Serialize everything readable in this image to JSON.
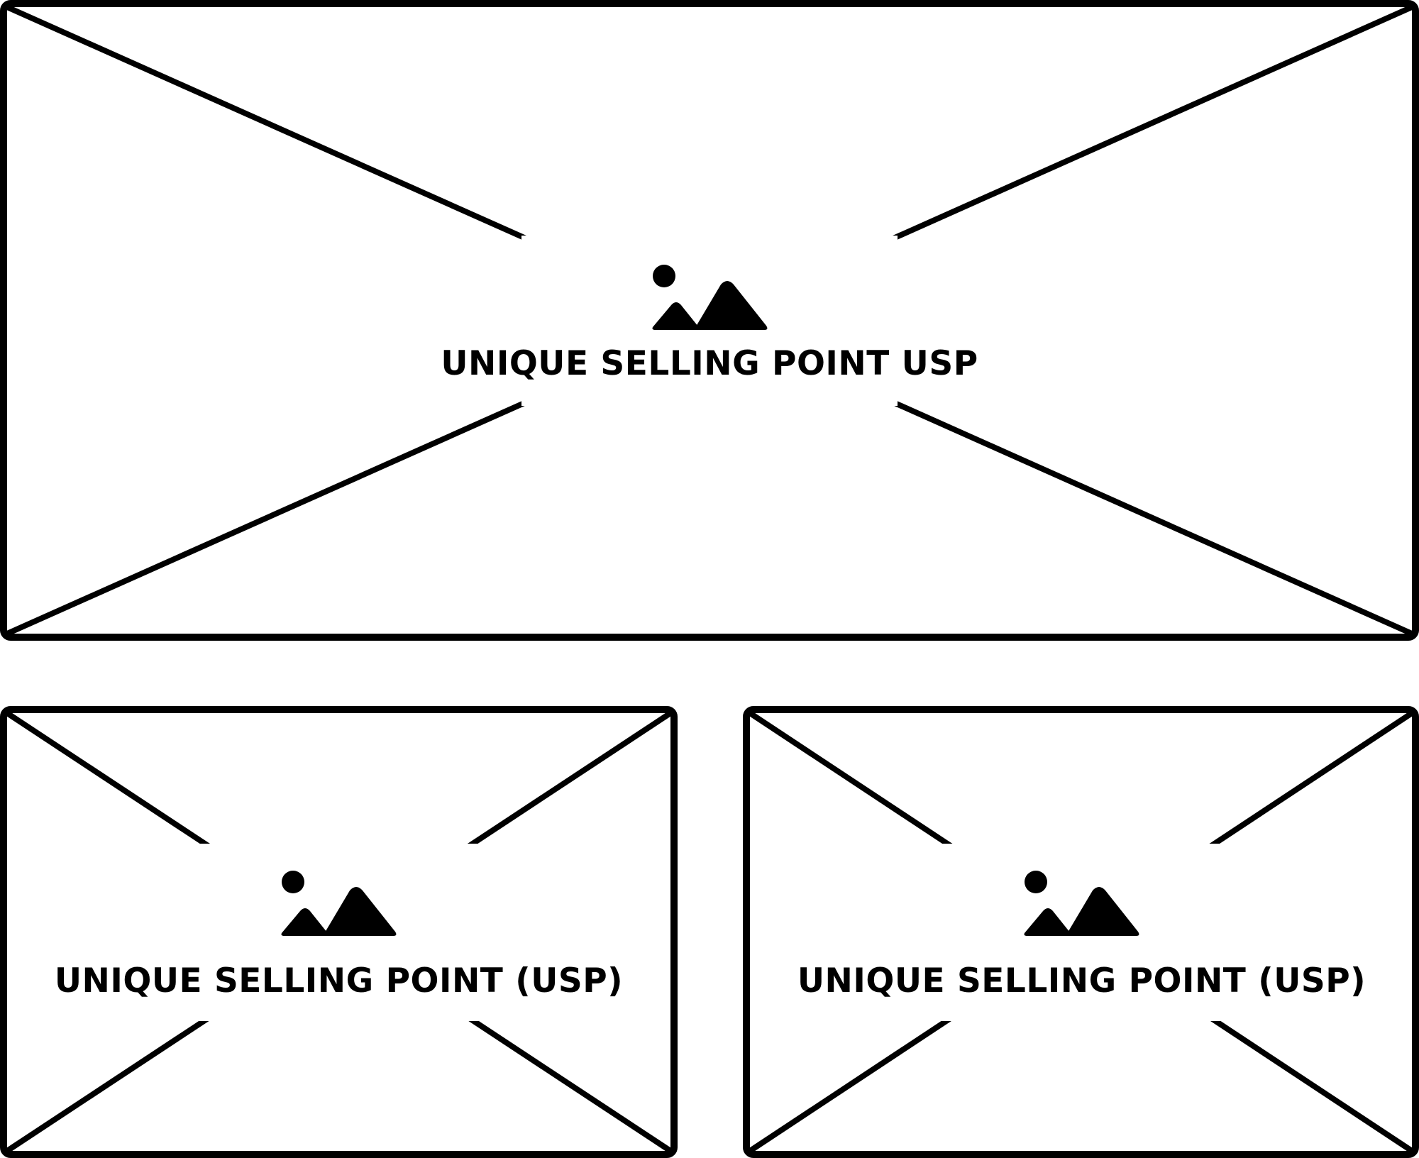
{
  "placeholders": {
    "hero": {
      "label": "UNIQUE SELLING POINT USP",
      "icon": "image-icon"
    },
    "left": {
      "label": "UNIQUE SELLING POINT (USP)",
      "icon": "image-icon"
    },
    "right": {
      "label": "UNIQUE SELLING POINT (USP)",
      "icon": "image-icon"
    }
  },
  "colors": {
    "stroke": "#000000",
    "background": "#ffffff"
  }
}
